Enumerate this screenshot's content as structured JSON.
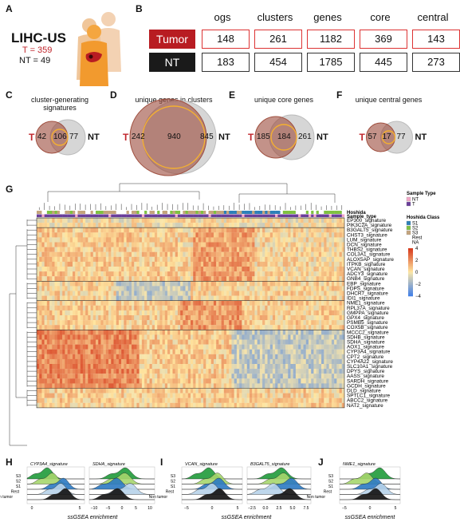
{
  "panels": {
    "a": "A",
    "b": "B",
    "c": "C",
    "d": "D",
    "e": "E",
    "f": "F",
    "g": "G",
    "h": "H",
    "i": "I",
    "j": "J"
  },
  "panel_a": {
    "title": "LIHC-US",
    "tumor": "T = 359",
    "nontumor": "NT = 49"
  },
  "panel_b": {
    "headers": [
      "ogs",
      "clusters",
      "genes",
      "core",
      "central"
    ],
    "rows": [
      {
        "label": "Tumor",
        "values": [
          "148",
          "261",
          "1182",
          "369",
          "143"
        ],
        "color": "#b81c22"
      },
      {
        "label": "NT",
        "values": [
          "183",
          "454",
          "1785",
          "445",
          "273"
        ],
        "color": "#1a1a1a"
      }
    ]
  },
  "venns": [
    {
      "title": "cluster-generating signatures",
      "t_label": "T",
      "nt_label": "NT",
      "left": "42",
      "mid": "106",
      "right": "77"
    },
    {
      "title": "unique genes in clusters",
      "t_label": "T",
      "nt_label": "NT",
      "left": "242",
      "mid": "940",
      "right": "845"
    },
    {
      "title": "unique core genes",
      "t_label": "T",
      "nt_label": "NT",
      "left": "185",
      "mid": "184",
      "right": "261"
    },
    {
      "title": "unique central genes",
      "t_label": "T",
      "nt_label": "NT",
      "left": "57",
      "mid": "17",
      "right": "77"
    }
  ],
  "heatmap": {
    "annotation_rows": [
      "Hoshida",
      "Sample_type"
    ],
    "signatures": [
      "EP300_signature",
      "PIK3C2A_signature",
      "B3GALT5_signature",
      "CHST3_signature",
      "LUM_signature",
      "DCN_signature",
      "THBS2_signature",
      "COL3A1_signature",
      "ALOX5AP_signature",
      "ITPKB_signature",
      "VCAN_signature",
      "ADCY3_signature",
      "GNB4_signature",
      "EBP_signature",
      "FDPS_signature",
      "DHCR7_signature",
      "IDI1_signature",
      "NME1_signature",
      "RPL37A_signature",
      "GMPPA_signature",
      "GPX4_signature",
      "PSMB5_signature",
      "COX5B_signature",
      "MCCC2_signature",
      "SDHB_signature",
      "SDHA_signature",
      "AOX1_signature",
      "CYP3A4_signature",
      "CPT2_signature",
      "CYP4A22_signature",
      "SLC10A1_signature",
      "DPYS_signature",
      "AASS_signature",
      "SARDH_signature",
      "GCDH_signature",
      "DLD_signature",
      "SPTLC1_signature",
      "ABCC2_signature",
      "NAT2_signature"
    ],
    "legend": {
      "sample_type_title": "Sample Type",
      "sample_types": [
        {
          "label": "NT",
          "color": "#f2a7c7"
        },
        {
          "label": "T",
          "color": "#6a3d9a"
        }
      ],
      "hoshida_title": "Hoshida Class",
      "hoshida": [
        {
          "label": "S1",
          "color": "#2c7fb8"
        },
        {
          "label": "S2",
          "color": "#7fc241"
        },
        {
          "label": "S3",
          "color": "#c4a47c"
        },
        {
          "label": "Rest",
          "color": "#ffffff"
        },
        {
          "label": "NA",
          "color": "#ffffff"
        }
      ],
      "scale_ticks": [
        "4",
        "2",
        "0",
        "−2",
        "−4"
      ]
    }
  },
  "ridges": {
    "row_labels": [
      "S3",
      "S2",
      "S1",
      "Rest",
      "Non tumor"
    ],
    "panels": [
      {
        "titles": [
          "CYP3A4_signature",
          "SDHA_signature"
        ],
        "ticks": [
          [
            "0",
            "5"
          ],
          [
            "−10",
            "−5",
            "0",
            "5",
            "10"
          ]
        ],
        "xlabel": "ssGSEA enrichment"
      },
      {
        "titles": [
          "VCAN_signature",
          "B3GALT5_signature"
        ],
        "ticks": [
          [
            "−5",
            "0",
            "5"
          ],
          [
            "−2.5",
            "0.0",
            "2.5",
            "5.0",
            "7.5"
          ]
        ],
        "xlabel": "ssGSEA enrichment"
      },
      {
        "titles": [
          "NME1_signature"
        ],
        "ticks": [
          [
            "−5",
            "0",
            "5"
          ]
        ],
        "xlabel": "ssGSEA enrichment"
      }
    ],
    "colors": {
      "S3": "#1f9a3a",
      "S2": "#a6d66d",
      "S1": "#2b79c2",
      "Rest": "#b7d3ea",
      "Non tumor": "#111111"
    }
  }
}
